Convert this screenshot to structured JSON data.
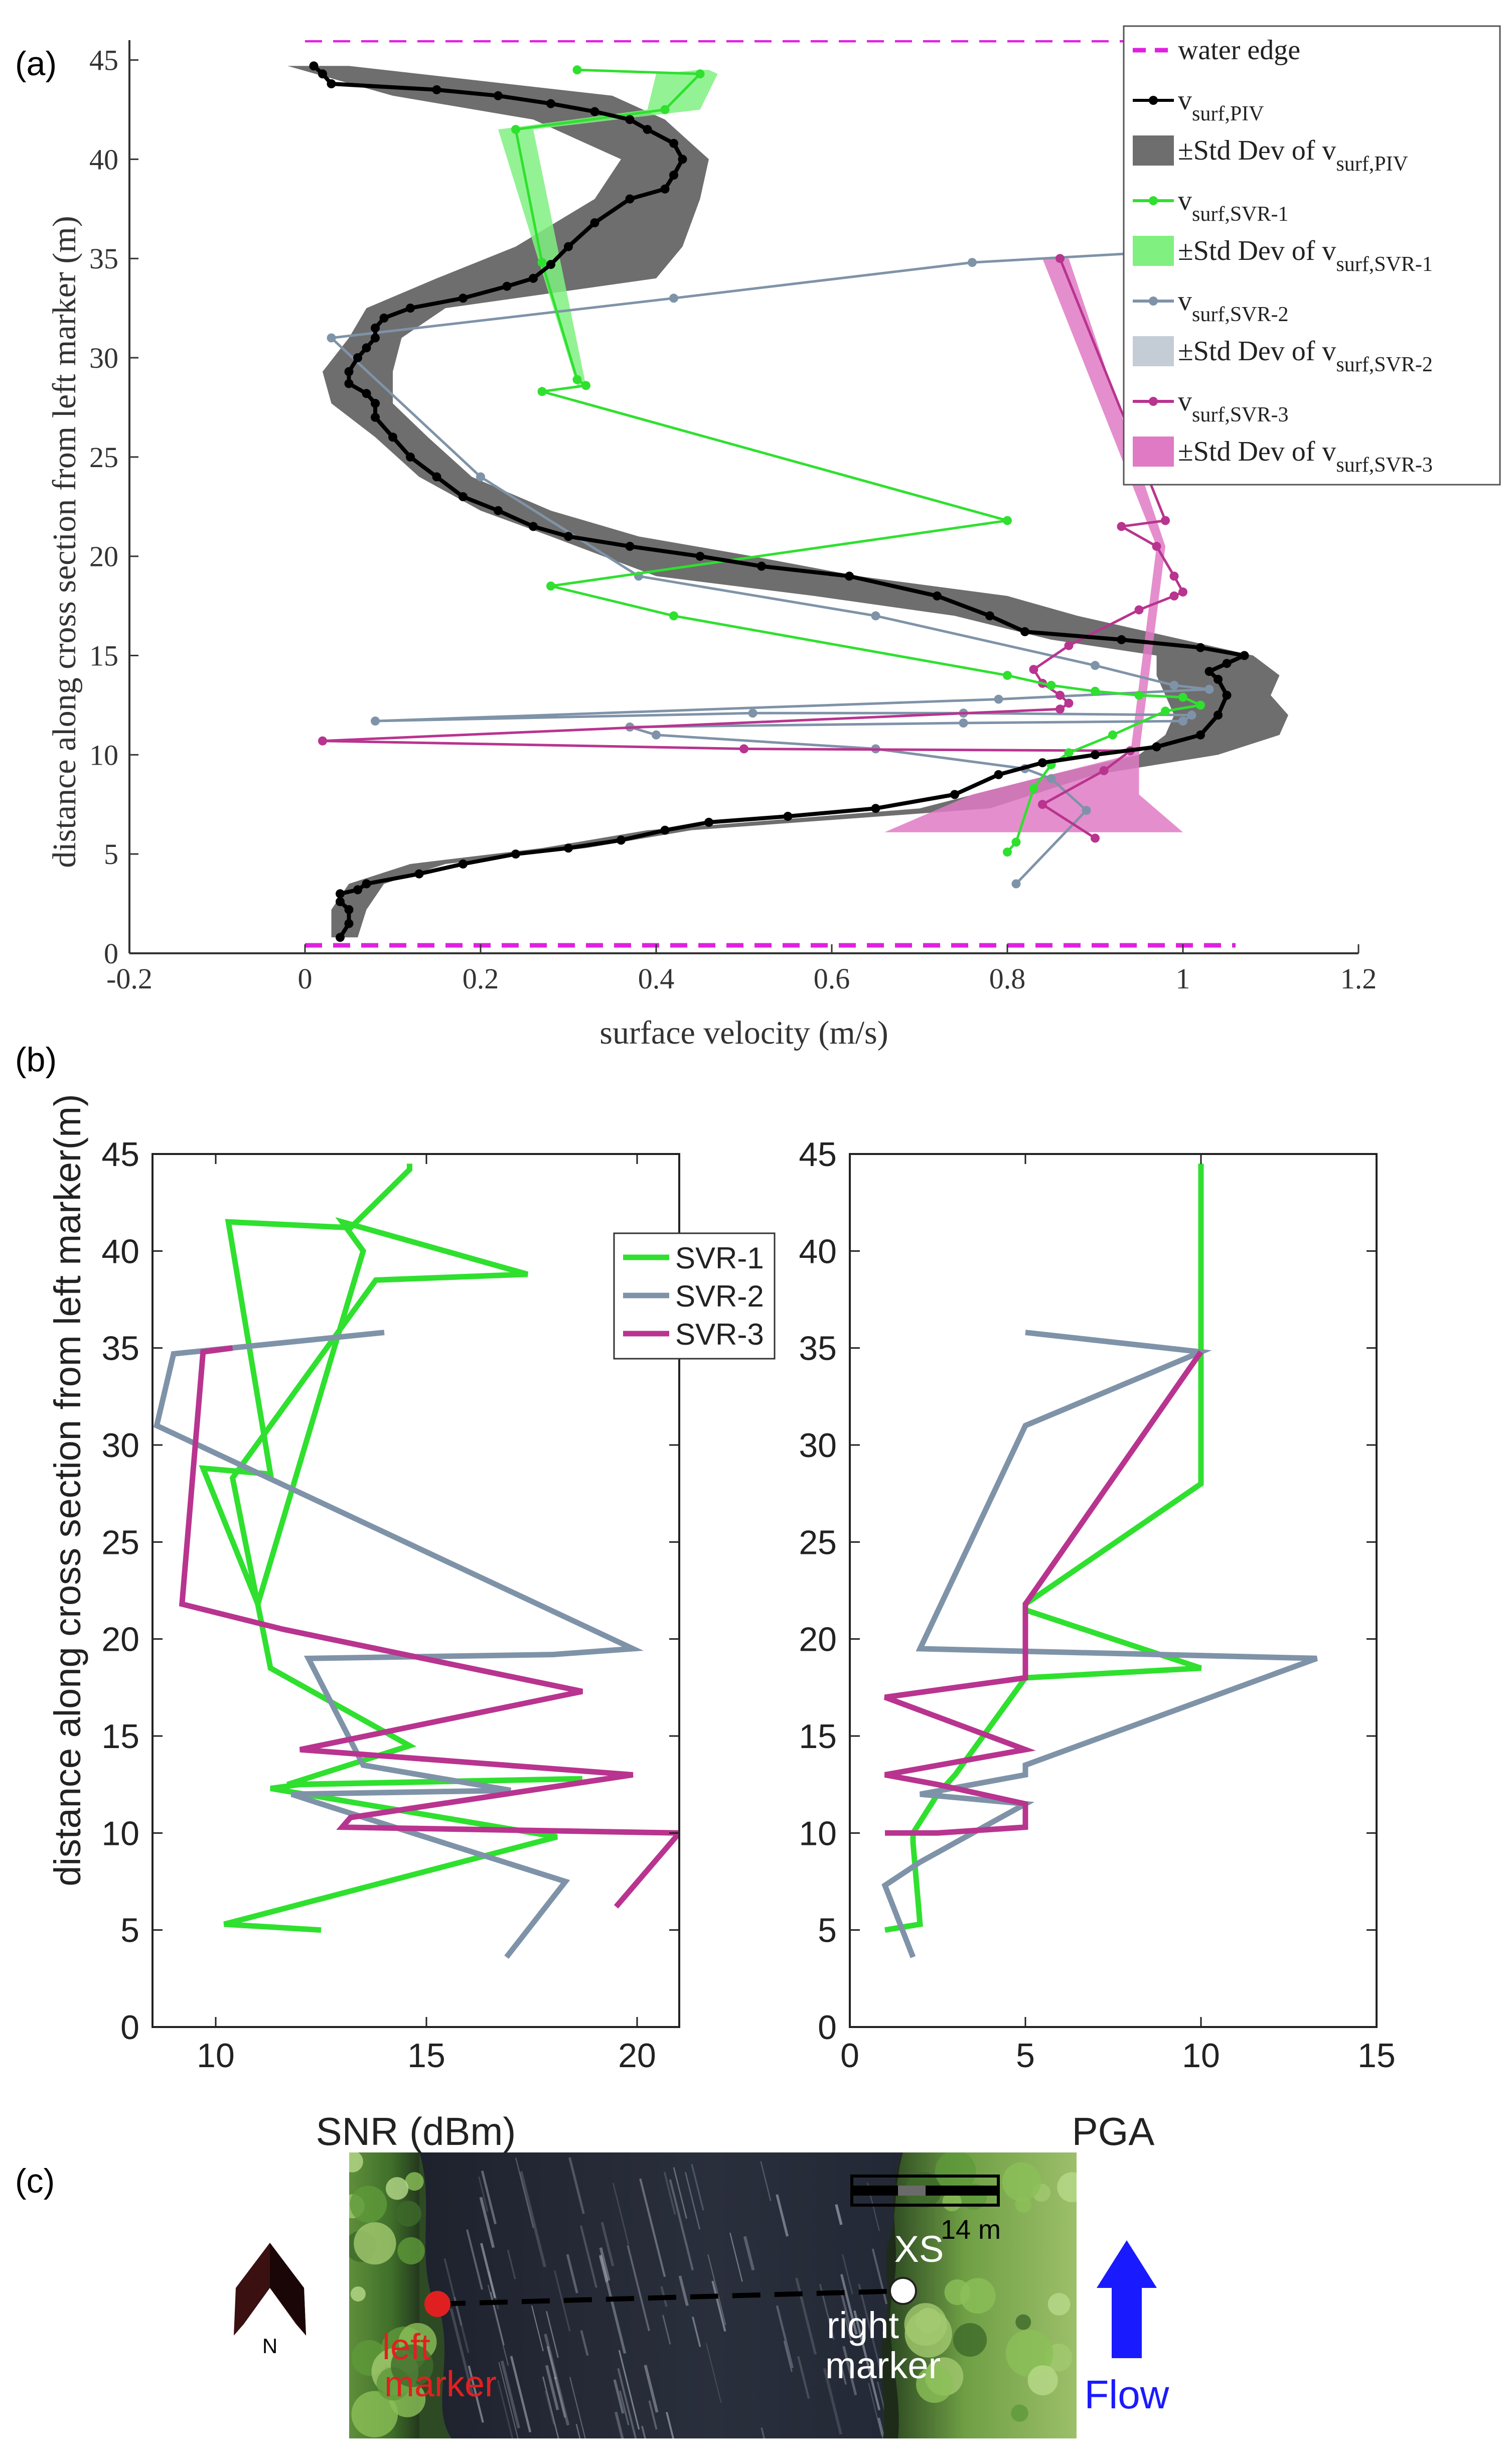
{
  "panels": {
    "a": "(a)",
    "b": "(b)",
    "c": "(c)"
  },
  "colors": {
    "water_edge": "#e020e0",
    "piv": "#000000",
    "piv_band": "#6e6e6e",
    "svr1": "#2fe02f",
    "svr1_band": "#80f080",
    "svr2": "#7f93a8",
    "svr2_band": "#c4ccd6",
    "svr3": "#b8348f",
    "svr3_band": "#e07ac4",
    "flow_arrow": "#1a1aff",
    "left_marker": "#e02020",
    "right_marker": "#ffffff",
    "north_arrow": "#3a1010"
  },
  "chart_data": [
    {
      "id": "a",
      "type": "line",
      "xlabel": "surface velocity (m/s)",
      "ylabel": "distance along cross section from left marker (m)",
      "xlim": [
        -0.2,
        1.2
      ],
      "ylim": [
        0,
        46
      ],
      "xticks": [
        "-0.2",
        "0",
        "0.2",
        "0.4",
        "0.6",
        "0.8",
        "1",
        "1.2"
      ],
      "yticks": [
        "0",
        "5",
        "10",
        "15",
        "20",
        "25",
        "30",
        "35",
        "40",
        "45"
      ],
      "legend": {
        "placement": "top-right",
        "entries": [
          {
            "key": "water_edge",
            "style": "dashed",
            "base": "water edge",
            "sub": ""
          },
          {
            "key": "piv",
            "style": "line",
            "base": "v",
            "sub": "surf,PIV"
          },
          {
            "key": "piv_band",
            "style": "patch",
            "base": "±Std Dev of v",
            "sub": "surf,PIV"
          },
          {
            "key": "svr1",
            "style": "line",
            "base": "v",
            "sub": "surf,SVR-1"
          },
          {
            "key": "svr1_band",
            "style": "patch",
            "base": "±Std Dev of v",
            "sub": "surf,SVR-1"
          },
          {
            "key": "svr2",
            "style": "line",
            "base": "v",
            "sub": "surf,SVR-2"
          },
          {
            "key": "svr2_band",
            "style": "patch",
            "base": "±Std Dev of v",
            "sub": "surf,SVR-2"
          },
          {
            "key": "svr3",
            "style": "line",
            "base": "v",
            "sub": "surf,SVR-3"
          },
          {
            "key": "svr3_band",
            "style": "patch",
            "base": "±Std Dev of v",
            "sub": "surf,SVR-3"
          }
        ]
      },
      "water_edge": {
        "y": [
          0.4,
          46.0
        ],
        "x": [
          0.0,
          1.06
        ]
      },
      "series": [
        {
          "key": "piv",
          "name": "v surf,PIV",
          "x": [
            0.04,
            0.05,
            0.05,
            0.04,
            0.04,
            0.06,
            0.07,
            0.13,
            0.18,
            0.24,
            0.3,
            0.36,
            0.41,
            0.46,
            0.55,
            0.65,
            0.74,
            0.79,
            0.84,
            0.9,
            0.97,
            1.02,
            1.04,
            1.05,
            1.04,
            1.03,
            1.05,
            1.07,
            1.02,
            0.93,
            0.82,
            0.78,
            0.72,
            0.62,
            0.52,
            0.45,
            0.37,
            0.3,
            0.26,
            0.22,
            0.18,
            0.15,
            0.12,
            0.1,
            0.08,
            0.08,
            0.07,
            0.05,
            0.05,
            0.06,
            0.07,
            0.08,
            0.08,
            0.09,
            0.12,
            0.18,
            0.23,
            0.26,
            0.28,
            0.3,
            0.33,
            0.37,
            0.41,
            0.42,
            0.43,
            0.42,
            0.39,
            0.37,
            0.33,
            0.28,
            0.22,
            0.15,
            0.03,
            0.02,
            0.01
          ],
          "y": [
            0.8,
            1.5,
            2.2,
            2.6,
            3.0,
            3.2,
            3.5,
            4.0,
            4.5,
            5.0,
            5.3,
            5.7,
            6.2,
            6.6,
            6.9,
            7.3,
            8.0,
            9.0,
            9.6,
            10.0,
            10.4,
            11.0,
            12.0,
            13.0,
            13.8,
            14.2,
            14.6,
            15.0,
            15.4,
            15.8,
            16.2,
            17.0,
            18.0,
            19.0,
            19.5,
            20.0,
            20.5,
            21.0,
            21.5,
            22.3,
            23.0,
            24.0,
            25.0,
            26.0,
            27.0,
            27.7,
            28.2,
            28.7,
            29.3,
            30.0,
            30.5,
            31.0,
            31.5,
            32.0,
            32.5,
            33.0,
            33.6,
            34.0,
            34.7,
            35.6,
            36.8,
            38.0,
            38.5,
            39.2,
            40.0,
            40.8,
            41.5,
            42.0,
            42.4,
            42.8,
            43.2,
            43.5,
            43.8,
            44.3,
            44.7
          ]
        },
        {
          "key": "svr1",
          "name": "v surf,SVR-1",
          "x": [
            0.8,
            0.81,
            0.83,
            0.85,
            0.87,
            0.92,
            0.98,
            1.02,
            1.0,
            0.95,
            0.9,
            0.85,
            0.8,
            0.42,
            0.28,
            0.8,
            0.27,
            0.32,
            0.31,
            0.27,
            0.24,
            0.41,
            0.45,
            0.31
          ],
          "y": [
            5.1,
            5.6,
            8.3,
            9.5,
            10.1,
            11.0,
            12.2,
            12.5,
            12.9,
            13.0,
            13.2,
            13.5,
            14.0,
            17.0,
            18.5,
            21.8,
            28.3,
            28.6,
            28.9,
            34.8,
            41.5,
            42.5,
            44.3,
            44.5
          ]
        },
        {
          "key": "svr2",
          "name": "v surf,SVR-2",
          "x": [
            0.81,
            0.89,
            0.85,
            0.82,
            0.65,
            0.4,
            0.37,
            0.75,
            1.0,
            1.01,
            0.75,
            0.51,
            0.08,
            0.79,
            1.03,
            0.99,
            0.9,
            0.65,
            0.38,
            0.2,
            0.03,
            0.42,
            0.76,
            1.16
          ],
          "y": [
            3.5,
            7.2,
            8.8,
            9.3,
            10.3,
            11.0,
            11.4,
            11.6,
            11.7,
            12.0,
            12.1,
            12.1,
            11.7,
            12.8,
            13.3,
            13.5,
            14.5,
            17.0,
            19.0,
            24.0,
            31.0,
            33.0,
            34.8,
            35.8
          ]
        },
        {
          "key": "svr3",
          "name": "v surf,SVR-3",
          "x": [
            0.9,
            0.84,
            0.91,
            0.94,
            0.5,
            0.02,
            0.86,
            0.87,
            0.86,
            0.84,
            0.83,
            0.87,
            0.95,
            0.99,
            1.0,
            0.99,
            0.97,
            0.93,
            0.98,
            0.86
          ],
          "y": [
            5.8,
            7.5,
            9.2,
            10.2,
            10.3,
            10.7,
            12.3,
            12.6,
            13.0,
            13.6,
            14.3,
            15.5,
            17.3,
            18.0,
            18.2,
            19.0,
            20.5,
            21.5,
            21.8,
            35.0
          ]
        }
      ],
      "bands": [
        {
          "key": "piv_band",
          "y": [
            0.8,
            2.2,
            3.5,
            4.5,
            5.3,
            6.2,
            7.3,
            9.0,
            10.0,
            11.0,
            12.0,
            13.0,
            14.0,
            15.0,
            15.8,
            17.0,
            18.0,
            19.0,
            20.0,
            21.0,
            22.3,
            24.0,
            26.0,
            27.7,
            29.3,
            31.0,
            32.5,
            34.0,
            35.6,
            38.0,
            40.0,
            42.0,
            43.2,
            44.7
          ],
          "lo": [
            0.03,
            0.03,
            0.05,
            0.12,
            0.27,
            0.39,
            0.7,
            0.85,
            0.95,
            0.98,
            0.99,
            0.98,
            0.97,
            0.97,
            0.85,
            0.74,
            0.58,
            0.4,
            0.34,
            0.28,
            0.2,
            0.13,
            0.08,
            0.03,
            0.02,
            0.05,
            0.07,
            0.15,
            0.24,
            0.33,
            0.36,
            0.26,
            0.1,
            -0.02
          ],
          "hi": [
            0.06,
            0.07,
            0.09,
            0.16,
            0.32,
            0.44,
            0.78,
            0.9,
            1.04,
            1.11,
            1.12,
            1.1,
            1.11,
            1.08,
            1.0,
            0.88,
            0.8,
            0.63,
            0.51,
            0.38,
            0.28,
            0.19,
            0.14,
            0.1,
            0.1,
            0.11,
            0.16,
            0.4,
            0.43,
            0.45,
            0.46,
            0.41,
            0.35,
            0.05
          ]
        },
        {
          "key": "svr1_band",
          "y": [
            28.6,
            41.5,
            42.5,
            44.3,
            44.5
          ],
          "lo": [
            0.31,
            0.22,
            0.39,
            0.4,
            0.45
          ],
          "hi": [
            0.32,
            0.26,
            0.45,
            0.47,
            0.46
          ]
        },
        {
          "key": "svr3_band",
          "y": [
            6.1,
            8.0,
            10.0,
            20.5,
            35.0
          ],
          "lo": [
            0.66,
            0.76,
            0.94,
            0.97,
            0.84
          ],
          "hi": [
            1.0,
            0.95,
            0.95,
            0.98,
            0.87
          ]
        }
      ]
    },
    {
      "id": "b-left",
      "type": "line",
      "xlabel": "SNR (dBm)",
      "ylabel": "distance along cross section from left marker(m)",
      "xlim": [
        8.5,
        21
      ],
      "ylim": [
        0,
        45
      ],
      "xticks": [
        "10",
        "15",
        "20"
      ],
      "yticks": [
        "0",
        "5",
        "10",
        "15",
        "20",
        "25",
        "30",
        "35",
        "40",
        "45"
      ],
      "legend": {
        "placement": "top-right",
        "entries": [
          {
            "key": "svr1",
            "label": "SVR-1"
          },
          {
            "key": "svr2",
            "label": "SVR-2"
          },
          {
            "key": "svr3",
            "label": "SVR-3"
          }
        ]
      },
      "series": [
        {
          "key": "svr1",
          "name": "SVR-1",
          "x": [
            12.5,
            10.2,
            18.1,
            11.3,
            12.0,
            18.7,
            11.7,
            14.6,
            11.3,
            10.4,
            13.8,
            17.4,
            13.0,
            13.5,
            11.0,
            9.7,
            11.3,
            10.3,
            13.2,
            14.6,
            14.6
          ],
          "y": [
            5.0,
            5.3,
            9.8,
            12.3,
            12.5,
            12.8,
            12.5,
            14.5,
            18.5,
            28.3,
            38.5,
            38.8,
            41.5,
            40.0,
            21.8,
            28.8,
            28.5,
            41.5,
            41.2,
            44.2,
            44.5
          ]
        },
        {
          "key": "svr2",
          "name": "SVR-2",
          "x": [
            16.9,
            18.3,
            12.5,
            11.8,
            17.0,
            13.5,
            12.2,
            18.0,
            19.9,
            8.6,
            9.0,
            14.0
          ],
          "y": [
            3.6,
            7.5,
            11.5,
            12.0,
            12.2,
            13.5,
            19.0,
            19.2,
            19.5,
            31.0,
            34.7,
            35.8
          ]
        },
        {
          "key": "svr3",
          "name": "SVR-3",
          "x": [
            19.5,
            21.0,
            13.0,
            13.2,
            19.9,
            12.0,
            18.7,
            11.6,
            9.2,
            9.7,
            10.4
          ],
          "y": [
            6.2,
            10.0,
            10.3,
            10.8,
            13.0,
            14.3,
            17.3,
            20.5,
            21.8,
            34.8,
            35.0
          ]
        }
      ]
    },
    {
      "id": "b-right",
      "type": "line",
      "xlabel": "PGA",
      "ylabel": "",
      "xlim": [
        0,
        15
      ],
      "ylim": [
        0,
        45
      ],
      "xticks": [
        "0",
        "5",
        "10",
        "15"
      ],
      "yticks": [
        "0",
        "5",
        "10",
        "15",
        "20",
        "25",
        "30",
        "35",
        "40",
        "45"
      ],
      "series": [
        {
          "key": "svr1",
          "name": "SVR-1",
          "x": [
            1.0,
            2.0,
            1.8,
            1.8,
            2.5,
            3.0,
            5.0,
            10.0,
            5.0,
            5.0,
            10.0,
            10.0,
            10.0
          ],
          "y": [
            5.0,
            5.3,
            9.5,
            10.0,
            12.0,
            13.0,
            18.0,
            18.5,
            21.5,
            21.8,
            28.0,
            35.0,
            44.5
          ]
        },
        {
          "key": "svr2",
          "name": "SVR-2",
          "x": [
            1.8,
            1.0,
            2.0,
            5.0,
            2.0,
            5.0,
            5.0,
            13.3,
            2.0,
            5.0,
            10.0,
            5.0
          ],
          "y": [
            3.6,
            7.3,
            8.5,
            11.5,
            12.0,
            13.0,
            13.5,
            19.0,
            19.5,
            31.0,
            34.8,
            35.8
          ]
        },
        {
          "key": "svr3",
          "name": "SVR-3",
          "x": [
            1.0,
            2.5,
            5.0,
            5.0,
            2.5,
            1.0,
            5.0,
            1.0,
            5.0,
            5.0,
            10.0
          ],
          "y": [
            10.0,
            10.0,
            10.3,
            11.5,
            12.5,
            13.0,
            14.3,
            17.0,
            18.0,
            21.8,
            34.8
          ]
        }
      ]
    }
  ],
  "photo": {
    "scale_label": "14 m",
    "xs_label": "XS",
    "left_marker_label": [
      "left",
      "marker"
    ],
    "right_marker_label": [
      "right",
      "marker"
    ],
    "north_label": "N",
    "flow_label": "Flow"
  }
}
